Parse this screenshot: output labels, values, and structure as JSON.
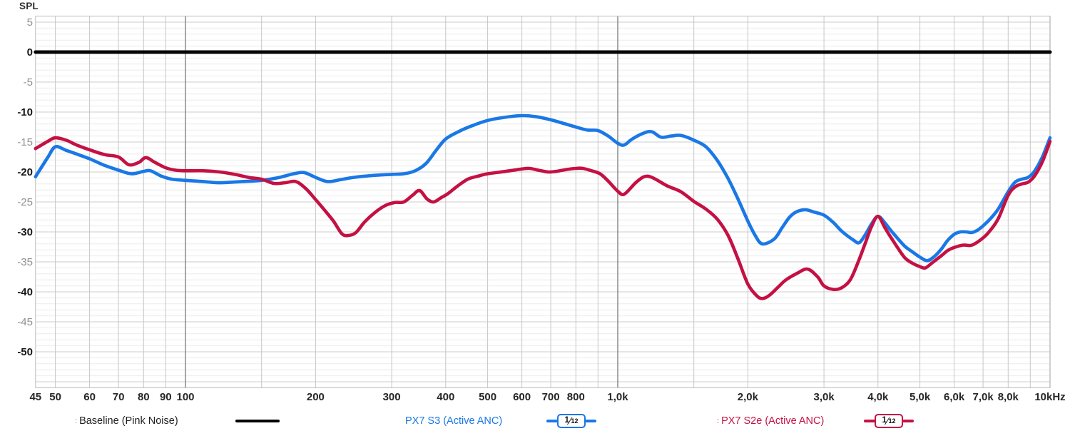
{
  "axes": {
    "y_title": "SPL",
    "ylim": [
      -56,
      6
    ],
    "xlim": [
      45,
      10000
    ],
    "y_ticks": [
      {
        "value": 5,
        "label": "5",
        "emphasized": false
      },
      {
        "value": 0,
        "label": "0",
        "emphasized": true
      },
      {
        "value": -5,
        "label": "-5",
        "emphasized": false
      },
      {
        "value": -10,
        "label": "-10",
        "emphasized": true
      },
      {
        "value": -15,
        "label": "-15",
        "emphasized": false
      },
      {
        "value": -20,
        "label": "-20",
        "emphasized": true
      },
      {
        "value": -25,
        "label": "-25",
        "emphasized": false
      },
      {
        "value": -30,
        "label": "-30",
        "emphasized": true
      },
      {
        "value": -35,
        "label": "-35",
        "emphasized": false
      },
      {
        "value": -40,
        "label": "-40",
        "emphasized": true
      },
      {
        "value": -45,
        "label": "-45",
        "emphasized": false
      },
      {
        "value": -50,
        "label": "-50",
        "emphasized": true
      }
    ],
    "x_ticks": [
      {
        "freq": 45,
        "label": "45"
      },
      {
        "freq": 50,
        "label": "50"
      },
      {
        "freq": 60,
        "label": "60"
      },
      {
        "freq": 70,
        "label": "70"
      },
      {
        "freq": 80,
        "label": "80"
      },
      {
        "freq": 90,
        "label": "90"
      },
      {
        "freq": 100,
        "label": "100"
      },
      {
        "freq": 200,
        "label": "200"
      },
      {
        "freq": 300,
        "label": "300"
      },
      {
        "freq": 400,
        "label": "400"
      },
      {
        "freq": 500,
        "label": "500"
      },
      {
        "freq": 600,
        "label": "600"
      },
      {
        "freq": 700,
        "label": "700"
      },
      {
        "freq": 800,
        "label": "800"
      },
      {
        "freq": 1000,
        "label": "1,0k"
      },
      {
        "freq": 2000,
        "label": "2,0k"
      },
      {
        "freq": 3000,
        "label": "3,0k"
      },
      {
        "freq": 4000,
        "label": "4,0k"
      },
      {
        "freq": 5000,
        "label": "5,0k"
      },
      {
        "freq": 6000,
        "label": "6,0k"
      },
      {
        "freq": 7000,
        "label": "7,0k"
      },
      {
        "freq": 8000,
        "label": "8,0k"
      },
      {
        "freq": 10000,
        "label": "10kHz"
      }
    ],
    "grid_freqs": [
      50,
      60,
      70,
      80,
      90,
      100,
      150,
      200,
      300,
      400,
      500,
      600,
      700,
      800,
      900,
      1000,
      1500,
      2000,
      3000,
      4000,
      5000,
      6000,
      7000,
      8000,
      9000,
      10000
    ],
    "decade_freqs": [
      100,
      1000,
      10000
    ]
  },
  "chart_data": {
    "type": "line",
    "x_scale": "log",
    "ylabel": "SPL",
    "xlim": [
      45,
      10000
    ],
    "ylim": [
      -56,
      6
    ],
    "grid": "on",
    "legend_position": "bottom",
    "series": [
      {
        "name": "Baseline (Pink Noise)",
        "color": "#050505",
        "stroke_width": 5,
        "points": [
          [
            45,
            0
          ],
          [
            10000,
            0
          ]
        ]
      },
      {
        "name": "PX7 S3 (Active ANC)",
        "color": "#1a78e6",
        "smoothing": "1/12",
        "stroke_width": 4.6,
        "points": [
          [
            45,
            -20.8
          ],
          [
            48,
            -17.6
          ],
          [
            50,
            -15.8
          ],
          [
            53,
            -16.4
          ],
          [
            56,
            -17.0
          ],
          [
            60,
            -17.8
          ],
          [
            65,
            -18.9
          ],
          [
            70,
            -19.7
          ],
          [
            75,
            -20.3
          ],
          [
            80,
            -19.9
          ],
          [
            83,
            -19.8
          ],
          [
            88,
            -20.7
          ],
          [
            93,
            -21.2
          ],
          [
            100,
            -21.4
          ],
          [
            110,
            -21.6
          ],
          [
            120,
            -21.8
          ],
          [
            135,
            -21.6
          ],
          [
            150,
            -21.4
          ],
          [
            165,
            -20.9
          ],
          [
            178,
            -20.3
          ],
          [
            188,
            -20.1
          ],
          [
            200,
            -20.9
          ],
          [
            213,
            -21.6
          ],
          [
            228,
            -21.3
          ],
          [
            245,
            -20.9
          ],
          [
            270,
            -20.6
          ],
          [
            300,
            -20.4
          ],
          [
            320,
            -20.3
          ],
          [
            340,
            -19.8
          ],
          [
            360,
            -18.6
          ],
          [
            380,
            -16.4
          ],
          [
            400,
            -14.5
          ],
          [
            430,
            -13.2
          ],
          [
            460,
            -12.3
          ],
          [
            500,
            -11.4
          ],
          [
            545,
            -10.9
          ],
          [
            600,
            -10.6
          ],
          [
            650,
            -10.8
          ],
          [
            700,
            -11.3
          ],
          [
            750,
            -11.9
          ],
          [
            800,
            -12.5
          ],
          [
            850,
            -13.0
          ],
          [
            900,
            -13.1
          ],
          [
            950,
            -14.0
          ],
          [
            1000,
            -15.2
          ],
          [
            1035,
            -15.5
          ],
          [
            1080,
            -14.5
          ],
          [
            1150,
            -13.5
          ],
          [
            1200,
            -13.3
          ],
          [
            1260,
            -14.2
          ],
          [
            1330,
            -14.0
          ],
          [
            1400,
            -13.9
          ],
          [
            1500,
            -14.7
          ],
          [
            1600,
            -15.8
          ],
          [
            1700,
            -18.1
          ],
          [
            1800,
            -21.1
          ],
          [
            1900,
            -24.6
          ],
          [
            2000,
            -28.2
          ],
          [
            2080,
            -30.6
          ],
          [
            2160,
            -32.0
          ],
          [
            2300,
            -31.2
          ],
          [
            2400,
            -29.3
          ],
          [
            2500,
            -27.5
          ],
          [
            2600,
            -26.6
          ],
          [
            2720,
            -26.3
          ],
          [
            2850,
            -26.7
          ],
          [
            3000,
            -27.2
          ],
          [
            3150,
            -28.4
          ],
          [
            3300,
            -29.9
          ],
          [
            3500,
            -31.3
          ],
          [
            3620,
            -31.8
          ],
          [
            3750,
            -30.3
          ],
          [
            3870,
            -28.6
          ],
          [
            4000,
            -27.4
          ],
          [
            4150,
            -28.5
          ],
          [
            4300,
            -29.9
          ],
          [
            4600,
            -32.3
          ],
          [
            4800,
            -33.3
          ],
          [
            5000,
            -34.2
          ],
          [
            5200,
            -34.8
          ],
          [
            5400,
            -34.1
          ],
          [
            5600,
            -32.9
          ],
          [
            5800,
            -31.4
          ],
          [
            6000,
            -30.4
          ],
          [
            6200,
            -30.0
          ],
          [
            6400,
            -30.0
          ],
          [
            6600,
            -30.1
          ],
          [
            6800,
            -29.7
          ],
          [
            7000,
            -29.0
          ],
          [
            7300,
            -27.7
          ],
          [
            7600,
            -26.1
          ],
          [
            8000,
            -23.3
          ],
          [
            8300,
            -21.7
          ],
          [
            8600,
            -21.2
          ],
          [
            8900,
            -20.9
          ],
          [
            9200,
            -19.9
          ],
          [
            9600,
            -17.5
          ],
          [
            10000,
            -14.3
          ]
        ]
      },
      {
        "name": "PX7 S2e (Active ANC)",
        "color": "#c41144",
        "smoothing": "1/12",
        "stroke_width": 4.6,
        "points": [
          [
            45,
            -16.1
          ],
          [
            48,
            -14.9
          ],
          [
            50,
            -14.3
          ],
          [
            53,
            -14.7
          ],
          [
            56,
            -15.5
          ],
          [
            60,
            -16.3
          ],
          [
            65,
            -17.1
          ],
          [
            70,
            -17.5
          ],
          [
            74,
            -18.8
          ],
          [
            78,
            -18.4
          ],
          [
            81,
            -17.6
          ],
          [
            85,
            -18.4
          ],
          [
            90,
            -19.3
          ],
          [
            95,
            -19.7
          ],
          [
            100,
            -19.8
          ],
          [
            110,
            -19.8
          ],
          [
            120,
            -20.0
          ],
          [
            130,
            -20.4
          ],
          [
            140,
            -20.9
          ],
          [
            150,
            -21.2
          ],
          [
            160,
            -21.9
          ],
          [
            170,
            -21.8
          ],
          [
            180,
            -21.6
          ],
          [
            190,
            -22.8
          ],
          [
            200,
            -24.6
          ],
          [
            210,
            -26.4
          ],
          [
            220,
            -28.2
          ],
          [
            230,
            -30.3
          ],
          [
            238,
            -30.6
          ],
          [
            248,
            -30.1
          ],
          [
            260,
            -28.3
          ],
          [
            275,
            -26.7
          ],
          [
            290,
            -25.6
          ],
          [
            305,
            -25.1
          ],
          [
            320,
            -25.0
          ],
          [
            335,
            -23.9
          ],
          [
            348,
            -23.1
          ],
          [
            362,
            -24.5
          ],
          [
            375,
            -25.0
          ],
          [
            390,
            -24.3
          ],
          [
            405,
            -23.6
          ],
          [
            425,
            -22.4
          ],
          [
            450,
            -21.2
          ],
          [
            475,
            -20.7
          ],
          [
            500,
            -20.3
          ],
          [
            550,
            -19.9
          ],
          [
            600,
            -19.5
          ],
          [
            625,
            -19.4
          ],
          [
            655,
            -19.7
          ],
          [
            690,
            -20.0
          ],
          [
            720,
            -19.9
          ],
          [
            760,
            -19.6
          ],
          [
            800,
            -19.4
          ],
          [
            830,
            -19.4
          ],
          [
            870,
            -19.8
          ],
          [
            910,
            -20.3
          ],
          [
            950,
            -21.5
          ],
          [
            1000,
            -23.2
          ],
          [
            1035,
            -23.7
          ],
          [
            1100,
            -21.8
          ],
          [
            1150,
            -20.8
          ],
          [
            1200,
            -20.9
          ],
          [
            1300,
            -22.3
          ],
          [
            1400,
            -23.3
          ],
          [
            1500,
            -24.9
          ],
          [
            1600,
            -26.2
          ],
          [
            1700,
            -27.9
          ],
          [
            1800,
            -30.6
          ],
          [
            1900,
            -34.6
          ],
          [
            2000,
            -38.7
          ],
          [
            2100,
            -40.7
          ],
          [
            2170,
            -41.1
          ],
          [
            2250,
            -40.5
          ],
          [
            2350,
            -39.2
          ],
          [
            2450,
            -38.0
          ],
          [
            2600,
            -36.9
          ],
          [
            2750,
            -36.2
          ],
          [
            2900,
            -37.5
          ],
          [
            3000,
            -39.0
          ],
          [
            3150,
            -39.6
          ],
          [
            3300,
            -39.3
          ],
          [
            3450,
            -38.0
          ],
          [
            3600,
            -35.0
          ],
          [
            3750,
            -31.6
          ],
          [
            3870,
            -29.0
          ],
          [
            4000,
            -27.4
          ],
          [
            4150,
            -29.3
          ],
          [
            4300,
            -31.1
          ],
          [
            4600,
            -34.2
          ],
          [
            4800,
            -35.2
          ],
          [
            5000,
            -35.8
          ],
          [
            5150,
            -36.0
          ],
          [
            5350,
            -35.1
          ],
          [
            5600,
            -34.0
          ],
          [
            5800,
            -33.1
          ],
          [
            6000,
            -32.6
          ],
          [
            6300,
            -32.2
          ],
          [
            6600,
            -32.2
          ],
          [
            7000,
            -31.0
          ],
          [
            7300,
            -29.6
          ],
          [
            7600,
            -27.7
          ],
          [
            8000,
            -23.9
          ],
          [
            8300,
            -22.5
          ],
          [
            8600,
            -22.0
          ],
          [
            8900,
            -21.7
          ],
          [
            9200,
            -20.7
          ],
          [
            9600,
            -18.3
          ],
          [
            10000,
            -14.9
          ]
        ]
      }
    ]
  },
  "legend": {
    "items": [
      {
        "prefix": ":",
        "prefix_color": "#c07030",
        "label": "Baseline (Pink Noise)",
        "text_color": "#1f1f1f",
        "line_color": "#050505",
        "badge": null
      },
      {
        "prefix": "",
        "prefix_color": "",
        "label": "PX7 S3 (Active ANC)",
        "text_color": "#1a78e6",
        "line_color": "#1a78e6",
        "badge": {
          "numerator": "1",
          "slash": "⁄",
          "denominator": "12"
        }
      },
      {
        "prefix": ":",
        "prefix_color": "#c41144",
        "label": "PX7 S2e (Active ANC)",
        "text_color": "#c41144",
        "line_color": "#c41144",
        "badge": {
          "numerator": "1",
          "slash": "⁄",
          "denominator": "12"
        }
      }
    ]
  }
}
